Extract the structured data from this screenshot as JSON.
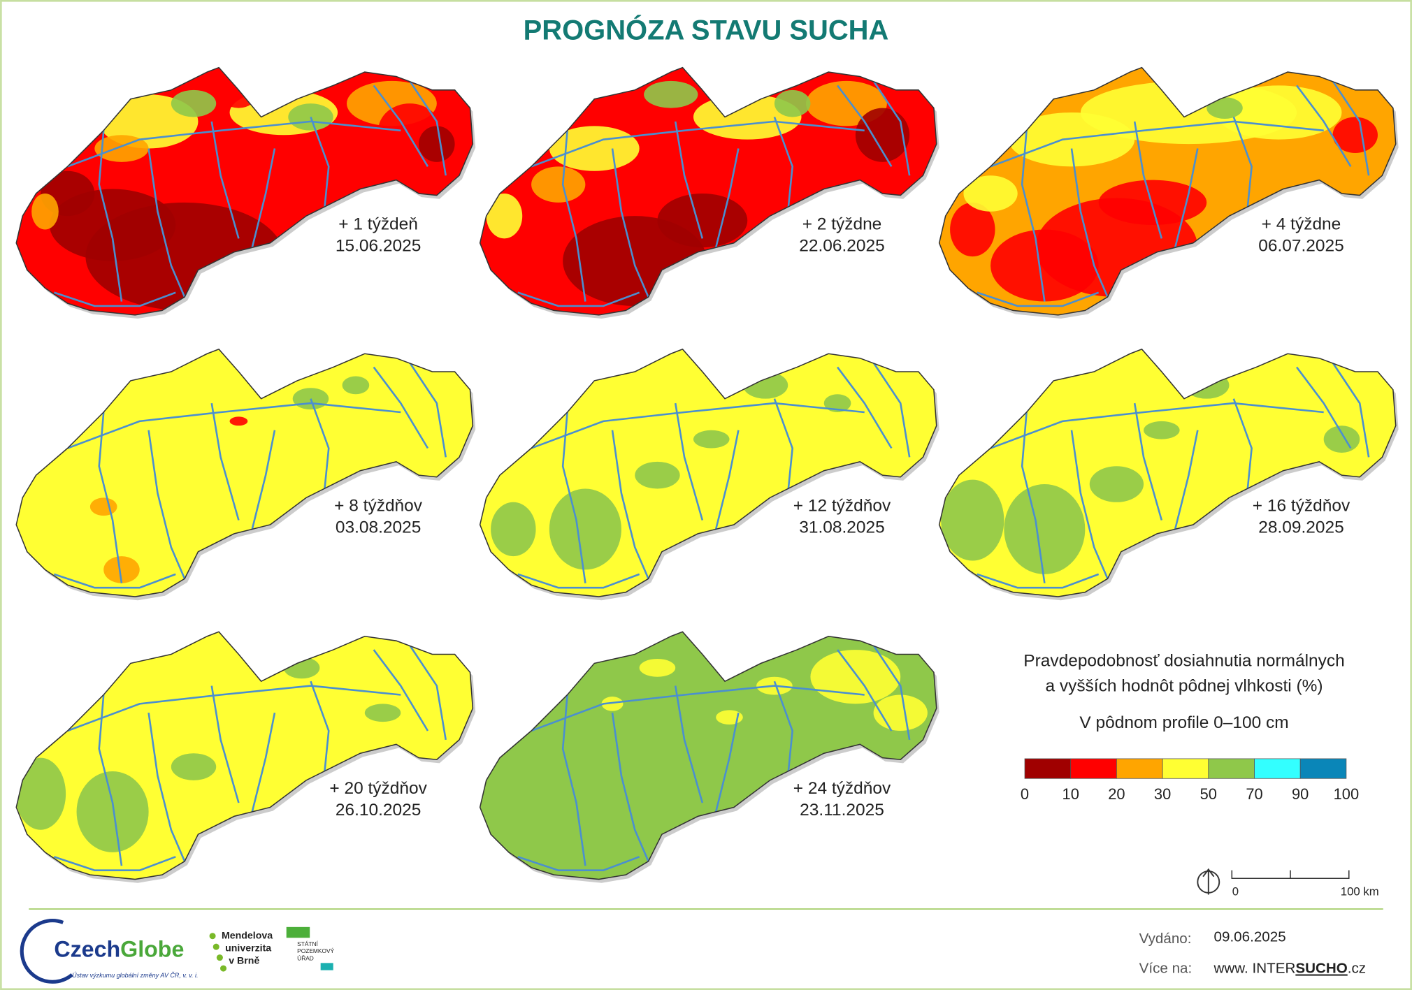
{
  "title": "PROGNÓZA STAVU SUCHA",
  "maps": [
    {
      "label": "+ 1 týždeň",
      "date": "15.06.2025"
    },
    {
      "label": "+ 2 týždne",
      "date": "22.06.2025"
    },
    {
      "label": "+ 4 týždne",
      "date": "06.07.2025"
    },
    {
      "label": "+ 8 týždňov",
      "date": "03.08.2025"
    },
    {
      "label": "+ 12 týždňov",
      "date": "31.08.2025"
    },
    {
      "label": "+ 16 týždňov",
      "date": "28.09.2025"
    },
    {
      "label": "+ 20 týždňov",
      "date": "26.10.2025"
    },
    {
      "label": "+ 24 týždňov",
      "date": "23.11.2025"
    }
  ],
  "legend": {
    "title_lines": [
      "Pravdepodobnosť dosiahnutia normálnych",
      "a vyšších hodnôt pôdnej vlhkosti (%)"
    ],
    "subtitle": "V pôdnom profile 0–100 cm",
    "bins": [
      0,
      10,
      20,
      30,
      50,
      70,
      90,
      100
    ],
    "colors": [
      "#a00000",
      "#ff0000",
      "#ffa500",
      "#ffff33",
      "#8fc84a",
      "#33ffff",
      "#0a86b8"
    ]
  },
  "scale_bar": {
    "start": "0",
    "end": "100 km"
  },
  "footer": {
    "issued_label": "Vydáno:",
    "issued_date": "09.06.2025",
    "more_label": "Více na:",
    "url_parts": [
      "www. INTER",
      "SUCHO",
      ".cz"
    ]
  },
  "logos": {
    "czechglobe": [
      "Czech",
      "Globe"
    ],
    "czechglobe_sub": "Ústav výzkumu globální změny AV ČR, v. v. i.",
    "mendelu": [
      "Mendelova",
      "univerzita",
      "v Brně"
    ],
    "spu": [
      "STÁTNÍ",
      "POZEMKOVÝ",
      "ÚŘAD"
    ]
  }
}
